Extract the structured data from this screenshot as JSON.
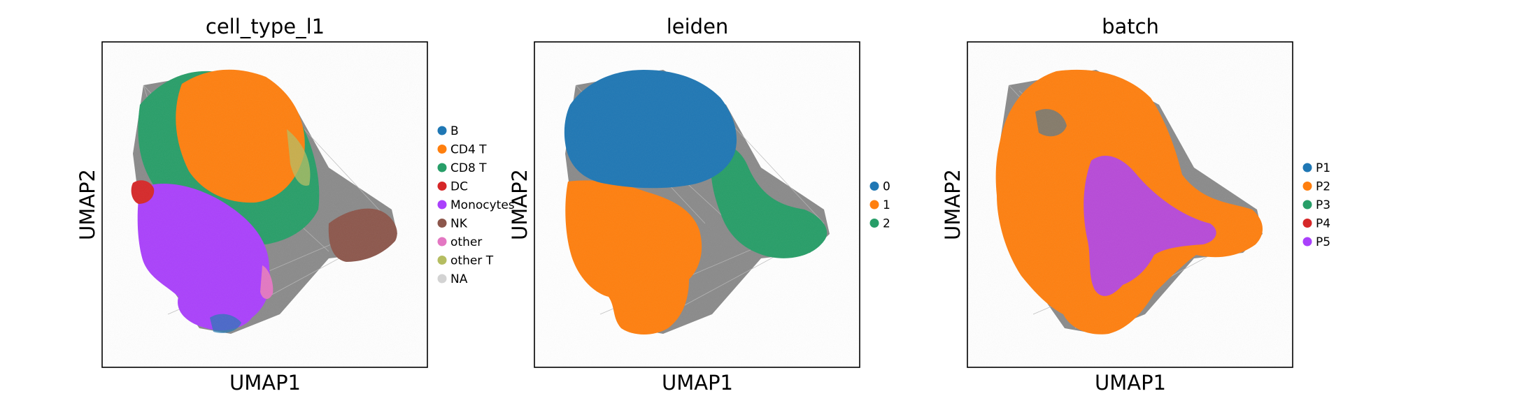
{
  "chart_data": [
    {
      "type": "scatter",
      "title": "cell_type_l1",
      "xlabel": "UMAP1",
      "ylabel": "UMAP2",
      "ticks": "none",
      "grid": false,
      "legend_position": "right",
      "edges_color": "#808080",
      "series": [
        {
          "name": "B",
          "color": "#1f77b4"
        },
        {
          "name": "CD4 T",
          "color": "#ff7f0e"
        },
        {
          "name": "CD8 T",
          "color": "#279e68"
        },
        {
          "name": "DC",
          "color": "#d62728"
        },
        {
          "name": "Monocytes",
          "color": "#aa40fc"
        },
        {
          "name": "NK",
          "color": "#8c564b"
        },
        {
          "name": "other",
          "color": "#e377c2"
        },
        {
          "name": "other T",
          "color": "#b5bd61"
        },
        {
          "name": "NA",
          "color": "#d3d3d3"
        }
      ]
    },
    {
      "type": "scatter",
      "title": "leiden",
      "xlabel": "UMAP1",
      "ylabel": "UMAP2",
      "ticks": "none",
      "grid": false,
      "legend_position": "right",
      "edges_color": "#808080",
      "series": [
        {
          "name": "0",
          "color": "#1f77b4"
        },
        {
          "name": "1",
          "color": "#ff7f0e"
        },
        {
          "name": "2",
          "color": "#279e68"
        }
      ]
    },
    {
      "type": "scatter",
      "title": "batch",
      "xlabel": "UMAP1",
      "ylabel": "UMAP2",
      "ticks": "none",
      "grid": false,
      "legend_position": "right",
      "edges_color": "#808080",
      "series": [
        {
          "name": "P1",
          "color": "#1f77b4"
        },
        {
          "name": "P2",
          "color": "#ff7f0e"
        },
        {
          "name": "P3",
          "color": "#279e68"
        },
        {
          "name": "P4",
          "color": "#d62728"
        },
        {
          "name": "P5",
          "color": "#aa40fc"
        }
      ]
    }
  ]
}
